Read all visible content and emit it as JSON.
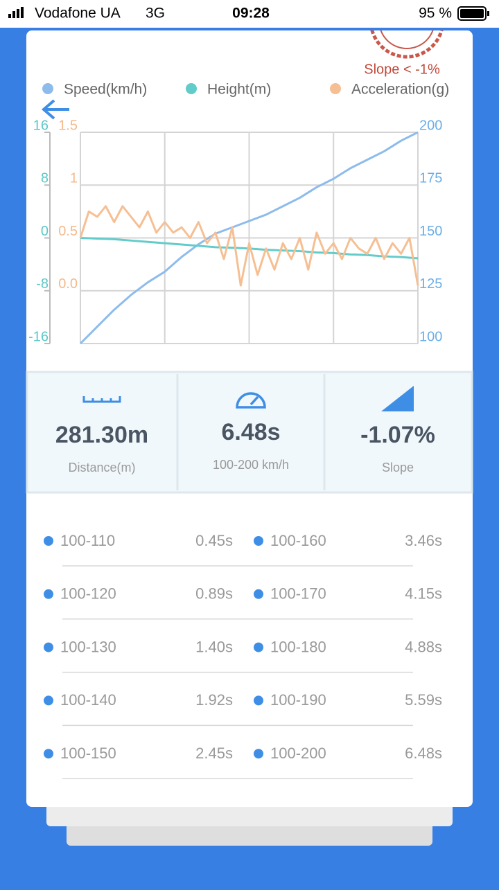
{
  "status_bar": {
    "carrier": "Vodafone UA",
    "network": "3G",
    "time": "09:28",
    "battery": "95 %"
  },
  "stamp": "Slope < -1%",
  "chart_data": {
    "type": "line",
    "series": [
      {
        "name": "Speed(km/h)",
        "color": "#8dbcec",
        "axis": "y2",
        "values": [
          100,
          108,
          116,
          123,
          129,
          134,
          141,
          147,
          152,
          155,
          158,
          161,
          165,
          169,
          174,
          178,
          183,
          187,
          191,
          196,
          200
        ]
      },
      {
        "name": "Height(m)",
        "color": "#62cccb",
        "axis": "y",
        "values": [
          0,
          -0.1,
          -0.2,
          -0.4,
          -0.6,
          -0.8,
          -1.0,
          -1.2,
          -1.4,
          -1.5,
          -1.6,
          -1.8,
          -1.9,
          -2.0,
          -2.2,
          -2.3,
          -2.5,
          -2.6,
          -2.8,
          -2.9,
          -3.1
        ]
      },
      {
        "name": "Acceleration(g)",
        "color": "#f6bf93",
        "axis": "y3",
        "values": [
          0.5,
          0.75,
          0.7,
          0.8,
          0.65,
          0.8,
          0.7,
          0.6,
          0.75,
          0.55,
          0.65,
          0.55,
          0.6,
          0.5,
          0.65,
          0.45,
          0.55,
          0.3,
          0.6,
          0.05,
          0.45,
          0.15,
          0.4,
          0.2,
          0.45,
          0.3,
          0.5,
          0.2,
          0.55,
          0.35,
          0.45,
          0.3,
          0.5,
          0.4,
          0.35,
          0.5,
          0.3,
          0.45,
          0.35,
          0.5,
          0.05
        ]
      }
    ],
    "ylim": [
      -16,
      16
    ],
    "yticks": [
      16,
      8,
      0,
      -8,
      -16
    ],
    "y2lim": [
      100,
      200
    ],
    "y2ticks": [
      200,
      175,
      150,
      125,
      100
    ],
    "y3lim": [
      -0.5,
      1.5
    ],
    "y3ticks": [
      1.5,
      1,
      0.5,
      {
        "value": 0,
        "label": "0.0"
      }
    ],
    "grid": true
  },
  "stats": [
    {
      "value": "281.30m",
      "label": "Distance(m)"
    },
    {
      "value": "6.48s",
      "label": "100-200 km/h"
    },
    {
      "value": "-1.07%",
      "label": "Slope"
    }
  ],
  "splits": [
    {
      "range": "100-110",
      "time": "0.45s"
    },
    {
      "range": "100-120",
      "time": "0.89s"
    },
    {
      "range": "100-130",
      "time": "1.40s"
    },
    {
      "range": "100-140",
      "time": "1.92s"
    },
    {
      "range": "100-150",
      "time": "2.45s"
    },
    {
      "range": "100-160",
      "time": "3.46s"
    },
    {
      "range": "100-170",
      "time": "4.15s"
    },
    {
      "range": "100-180",
      "time": "4.88s"
    },
    {
      "range": "100-190",
      "time": "5.59s"
    },
    {
      "range": "100-200",
      "time": "6.48s"
    }
  ]
}
